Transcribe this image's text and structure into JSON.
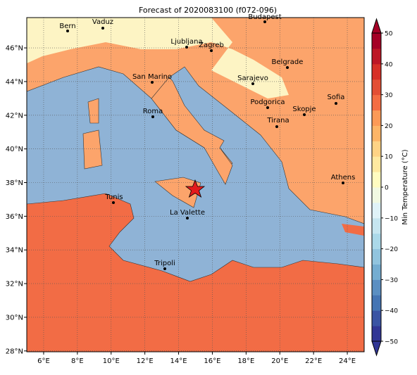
{
  "map": {
    "title": "Forecast of 2020083100 (f072-096)",
    "xlim": [
      5,
      25
    ],
    "ylim": [
      27.95,
      47.8
    ],
    "xticks": [
      {
        "value": 6,
        "label": "6°E"
      },
      {
        "value": 8,
        "label": "8°E"
      },
      {
        "value": 10,
        "label": "10°E"
      },
      {
        "value": 12,
        "label": "12°E"
      },
      {
        "value": 14,
        "label": "14°E"
      },
      {
        "value": 16,
        "label": "16°E"
      },
      {
        "value": 18,
        "label": "18°E"
      },
      {
        "value": 20,
        "label": "20°E"
      },
      {
        "value": 22,
        "label": "22°E"
      },
      {
        "value": 24,
        "label": "24°E"
      }
    ],
    "yticks": [
      {
        "value": 28,
        "label": "28°N"
      },
      {
        "value": 30,
        "label": "30°N"
      },
      {
        "value": 32,
        "label": "32°N"
      },
      {
        "value": 34,
        "label": "34°N"
      },
      {
        "value": 36,
        "label": "36°N"
      },
      {
        "value": 38,
        "label": "38°N"
      },
      {
        "value": 40,
        "label": "40°N"
      },
      {
        "value": 42,
        "label": "42°N"
      },
      {
        "value": 44,
        "label": "44°N"
      },
      {
        "value": 46,
        "label": "46°N"
      }
    ],
    "grid": true,
    "cities": [
      "Bern",
      "Vaduz",
      "Budapest",
      "Ljubljana",
      "Zagreb",
      "Belgrade",
      "San Marino",
      "Sarajevo",
      "Sofia",
      "Podgorica",
      "Skopje",
      "Roma",
      "Tirana",
      "Athens",
      "Tunis",
      "La Valette",
      "Tripoli"
    ],
    "colorbar": {
      "label": "Min Temperature (°C)",
      "clim": [
        -50,
        50
      ],
      "ticks": [
        {
          "value": -50,
          "label": "−50"
        },
        {
          "value": -40,
          "label": "−40"
        },
        {
          "value": -30,
          "label": "−30"
        },
        {
          "value": -20,
          "label": "−20"
        },
        {
          "value": -10,
          "label": "−10"
        },
        0,
        10,
        20,
        30,
        40,
        50
      ],
      "colors": [
        "#313695",
        "#3a54a4",
        "#4575b4",
        "#5b8fc2",
        "#74add1",
        "#91c4de",
        "#abd9e9",
        "#c6e6f0",
        "#e0f3f8",
        "#f1f9e2",
        "#fffcc0",
        "#fee9a0",
        "#fed385",
        "#fdb567",
        "#fc9a57",
        "#f46d43",
        "#e34f35",
        "#d73027",
        "#bd1726",
        "#a50026"
      ]
    }
  }
}
